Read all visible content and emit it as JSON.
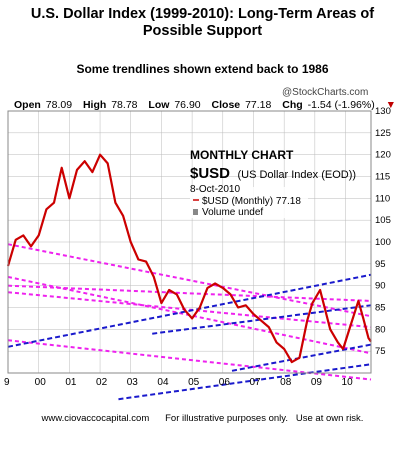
{
  "header": {
    "title_line1": "U.S. Dollar Index (1999-2010): Long-Term Areas of",
    "title_line2": "Possible Support",
    "subtitle": "Some trendlines shown extend back to 1986"
  },
  "stats": {
    "open_label": "Open",
    "open": "78.09",
    "high_label": "High",
    "high": "78.78",
    "low_label": "Low",
    "low": "76.90",
    "close_label": "Close",
    "close": "77.18",
    "chg_label": "Chg",
    "chg": "-1.54 (-1.96%)",
    "marker": "▼"
  },
  "source_label": "@StockCharts.com",
  "footer": {
    "site": "www.ciovaccocapital.com",
    "disclaimer": "For illustrative purposes only.   Use at own risk."
  },
  "colors": {
    "price": "#cc0000",
    "support_lines": "#ee22ee",
    "blue_lines": "#1a1acc",
    "grid": "#bbbbbb"
  },
  "chart_data": {
    "type": "line",
    "title": "MONTHLY CHART",
    "legend": {
      "symbol": "$USD",
      "name": "(US Dollar Index (EOD))",
      "date": "8-Oct-2010",
      "series_label": "$USD (Monthly) 77.18",
      "volume_label": "Volume undef"
    },
    "y_ticks": [
      75,
      80,
      85,
      90,
      95,
      100,
      105,
      110,
      115,
      120,
      125,
      130
    ],
    "x_ticks": [
      "9",
      "00",
      "01",
      "02",
      "03",
      "04",
      "05",
      "06",
      "07",
      "08",
      "09",
      "10"
    ],
    "x_tick_years": [
      1999,
      2000,
      2001,
      2002,
      2003,
      2004,
      2005,
      2006,
      2007,
      2008,
      2009,
      2010
    ],
    "xlim": [
      1999.0,
      2010.83
    ],
    "ylim": [
      70,
      130
    ],
    "price_series": [
      [
        1999.0,
        94.5
      ],
      [
        1999.25,
        100.5
      ],
      [
        1999.5,
        101.5
      ],
      [
        1999.75,
        99.0
      ],
      [
        2000.0,
        101.5
      ],
      [
        2000.25,
        107.5
      ],
      [
        2000.5,
        109.0
      ],
      [
        2000.75,
        117.0
      ],
      [
        2001.0,
        110.0
      ],
      [
        2001.25,
        116.5
      ],
      [
        2001.5,
        118.5
      ],
      [
        2001.75,
        116.0
      ],
      [
        2002.0,
        120.0
      ],
      [
        2002.25,
        118.0
      ],
      [
        2002.5,
        109.0
      ],
      [
        2002.75,
        106.0
      ],
      [
        2003.0,
        100.0
      ],
      [
        2003.25,
        96.0
      ],
      [
        2003.5,
        95.5
      ],
      [
        2003.75,
        92.0
      ],
      [
        2004.0,
        86.0
      ],
      [
        2004.25,
        89.0
      ],
      [
        2004.5,
        88.0
      ],
      [
        2004.75,
        84.5
      ],
      [
        2005.0,
        82.5
      ],
      [
        2005.25,
        85.0
      ],
      [
        2005.5,
        89.5
      ],
      [
        2005.75,
        90.5
      ],
      [
        2006.0,
        89.5
      ],
      [
        2006.25,
        88.0
      ],
      [
        2006.5,
        85.0
      ],
      [
        2006.75,
        85.5
      ],
      [
        2007.0,
        83.5
      ],
      [
        2007.25,
        82.0
      ],
      [
        2007.5,
        80.5
      ],
      [
        2007.75,
        77.0
      ],
      [
        2008.0,
        75.5
      ],
      [
        2008.25,
        72.5
      ],
      [
        2008.5,
        73.5
      ],
      [
        2008.75,
        82.0
      ],
      [
        2008.92,
        86.0
      ],
      [
        2009.17,
        89.0
      ],
      [
        2009.5,
        80.0
      ],
      [
        2009.75,
        77.0
      ],
      [
        2009.92,
        75.5
      ],
      [
        2010.17,
        81.0
      ],
      [
        2010.42,
        86.5
      ],
      [
        2010.58,
        82.5
      ],
      [
        2010.75,
        78.0
      ],
      [
        2010.83,
        77.18
      ]
    ],
    "support_lines": [
      [
        [
          1999.0,
          99.5
        ],
        [
          2010.83,
          83.0
        ]
      ],
      [
        [
          1999.0,
          92.0
        ],
        [
          2010.83,
          74.5
        ]
      ],
      [
        [
          1999.0,
          90.0
        ],
        [
          2010.83,
          86.5
        ]
      ],
      [
        [
          1999.0,
          88.5
        ],
        [
          2010.83,
          80.5
        ]
      ],
      [
        [
          1999.0,
          77.5
        ],
        [
          2010.83,
          68.5
        ]
      ]
    ],
    "blue_lines": [
      [
        [
          1999.0,
          76.0
        ],
        [
          2010.83,
          92.5
        ]
      ],
      [
        [
          2003.7,
          79.0
        ],
        [
          2010.83,
          85.5
        ]
      ],
      [
        [
          2006.3,
          70.5
        ],
        [
          2010.83,
          76.5
        ]
      ],
      [
        [
          2002.6,
          64.0
        ],
        [
          2010.83,
          72.0
        ]
      ]
    ]
  }
}
